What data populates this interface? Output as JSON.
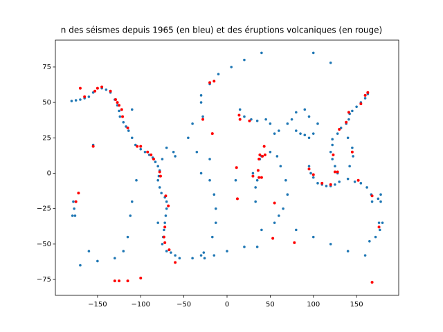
{
  "chart_data": {
    "type": "scatter",
    "title": "n des séismes depuis 1965 (en bleu) et des éruptions volcaniques (en rouge)",
    "xlim": [
      -198.8,
      198.8
    ],
    "ylim": [
      -86.2,
      94
    ],
    "xticks": [
      {
        "value": -150,
        "label": "−150"
      },
      {
        "value": -100,
        "label": "−100"
      },
      {
        "value": -50,
        "label": "−50"
      },
      0,
      50,
      100,
      150
    ],
    "yticks": [
      {
        "value": -75,
        "label": "−75"
      },
      {
        "value": -50,
        "label": "−50"
      },
      {
        "value": -25,
        "label": "−25"
      },
      0,
      25,
      50,
      75
    ],
    "series": [
      {
        "color": "#1f77b4",
        "x": [
          -180,
          -175,
          -170,
          -165,
          -160,
          -155,
          -150,
          -145,
          -140,
          -135,
          -130,
          -127,
          -125,
          -124,
          -120,
          -117,
          -114,
          -110,
          -106,
          -100,
          -95,
          -90,
          -86,
          -83,
          -80,
          -78,
          -79,
          -80,
          -78,
          -76,
          -72,
          -70,
          -70,
          -71,
          -72,
          -73,
          -74,
          -75,
          -70,
          -65,
          -60,
          -55,
          -40,
          -30,
          -27,
          -26,
          -15,
          0,
          20,
          35,
          -30,
          -20,
          -15,
          -13,
          -13,
          -17,
          -20,
          -35,
          -45,
          -40,
          -28,
          -30,
          -30,
          -20,
          -10,
          5,
          20,
          40,
          120,
          100,
          60,
          65,
          70,
          68,
          62,
          58,
          50,
          40,
          55,
          80,
          100,
          120,
          140,
          160,
          -105,
          -110,
          -112,
          -115,
          -120,
          -130,
          -150,
          -170,
          -160,
          15,
          20,
          28,
          35,
          45,
          50,
          55,
          60,
          70,
          75,
          80,
          85,
          90,
          95,
          100,
          95,
          105,
          90,
          80,
          95,
          97,
          100,
          105,
          110,
          115,
          120,
          125,
          130,
          128,
          125,
          122,
          120,
          122,
          122,
          128,
          132,
          138,
          141,
          142,
          145,
          150,
          155,
          160,
          163,
          140,
          145,
          146,
          142,
          140,
          148,
          155,
          162,
          167,
          168,
          175,
          178,
          -177,
          -176,
          180,
          177,
          172,
          165,
          35,
          33,
          30,
          38,
          40,
          33,
          -70,
          -62,
          -60,
          -75,
          -155,
          -110,
          -80,
          10,
          -178,
          -179,
          178,
          176
        ],
        "values": [
          51,
          51.5,
          52,
          53,
          54,
          57,
          60,
          60,
          59,
          57,
          52,
          48,
          44,
          40,
          36,
          33,
          30,
          25,
          20,
          17,
          15,
          13,
          11,
          8,
          5,
          2,
          -2,
          -5,
          -10,
          -14,
          -17,
          -20,
          -25,
          -30,
          -35,
          -40,
          -45,
          -50,
          -55,
          -56,
          -58,
          -60,
          -60,
          -58,
          -56,
          -60,
          -58,
          -55,
          -52,
          -52,
          0,
          -5,
          -15,
          -25,
          -35,
          -45,
          10,
          15,
          25,
          35,
          40,
          50,
          55,
          63,
          70,
          75,
          80,
          85,
          78,
          85,
          -30,
          -25,
          -15,
          -5,
          5,
          12,
          15,
          -40,
          -35,
          -40,
          -45,
          -50,
          -55,
          -58,
          -5,
          -20,
          -30,
          -45,
          -55,
          -60,
          -62,
          -65,
          -55,
          45,
          40,
          38,
          37,
          38,
          35,
          28,
          30,
          35,
          38,
          30,
          28,
          27,
          25,
          28,
          40,
          35,
          45,
          43,
          5,
          0,
          -3,
          -7,
          -8,
          -9,
          -9,
          -8,
          -6,
          0,
          5,
          10,
          15,
          20,
          24,
          28,
          32,
          35,
          38,
          42,
          44,
          47,
          50,
          53,
          56,
          25,
          18,
          12,
          5,
          -4,
          -6,
          -7,
          -10,
          -15,
          -20,
          -18,
          -20,
          -25,
          -30,
          -35,
          -40,
          -45,
          -48,
          -5,
          -10,
          0,
          10,
          12,
          -20,
          18,
          15,
          12,
          10,
          20,
          45,
          -35,
          -5,
          -20,
          -30,
          -15,
          -35
        ]
      },
      {
        "color": "#ff0000",
        "x": [
          -165,
          -153,
          -150,
          -145,
          -135,
          -125,
          -122,
          -121,
          -115,
          -104,
          -100,
          -92,
          -88,
          -85,
          -78,
          -77,
          -71,
          -68,
          -72,
          -73,
          -72,
          -67,
          -60,
          -20,
          -17,
          -28,
          -15,
          15,
          14,
          26,
          40,
          37,
          36,
          38,
          41,
          43,
          44,
          30,
          37,
          11,
          12,
          55,
          95,
          100,
          110,
          120,
          125,
          128,
          123,
          130,
          138,
          141,
          155,
          160,
          163,
          145,
          152,
          168,
          176,
          168,
          -175,
          -155,
          -130,
          -125,
          -115,
          -100,
          78,
          53,
          -172,
          -170,
          -129,
          -127
        ],
        "values": [
          54,
          58,
          60,
          61,
          58,
          48,
          45,
          40,
          32,
          19,
          19,
          15,
          13,
          10,
          1,
          -2,
          -16,
          -23,
          -38,
          -45,
          -49,
          -54,
          -63,
          64,
          28,
          38,
          65,
          38,
          41,
          37,
          -3,
          -3,
          2,
          13,
          12,
          19,
          13,
          -2,
          10,
          4,
          -18,
          -21,
          3,
          -1,
          -7,
          -8,
          1,
          1,
          13,
          31,
          36,
          43,
          49,
          55,
          57,
          15,
          -5,
          -16,
          -38,
          -77,
          -20,
          19,
          -76,
          -76,
          -76,
          -74,
          -49,
          -46,
          -14,
          60,
          52,
          50
        ]
      }
    ]
  }
}
